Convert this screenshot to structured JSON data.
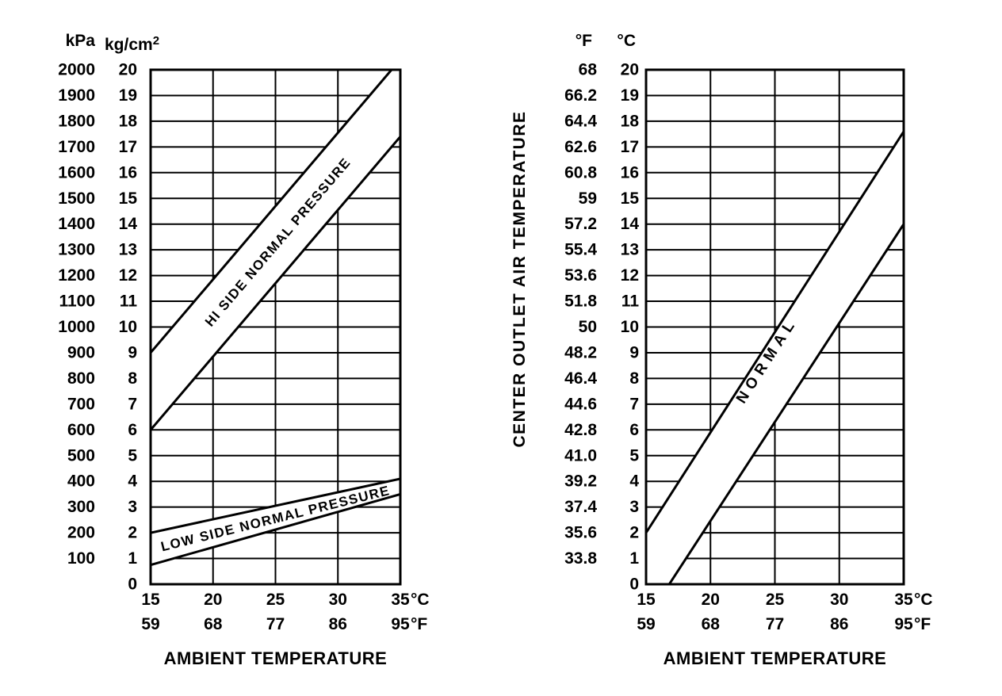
{
  "page": {
    "background": "#ffffff",
    "ink": "#000000",
    "band_fill": "#ffffff"
  },
  "chart_data": [
    {
      "id": "high-low-pressure-chart",
      "type": "area",
      "title": "",
      "xlabel": "AMBIENT TEMPERATURE",
      "x_axis": {
        "min": 15,
        "max": 35,
        "grid_step": 5,
        "ticks_c": [
          "15",
          "20",
          "25",
          "30",
          "35"
        ],
        "ticks_f": [
          "59",
          "68",
          "77",
          "86",
          "95"
        ],
        "unit_c": "°C",
        "unit_f": "°F"
      },
      "y_axis": {
        "min": 0,
        "max": 20,
        "grid_step": 1,
        "unit_left": "kPa",
        "unit_right": {
          "base": "kg/cm",
          "sup": "2"
        },
        "ticks_left": [
          "2000",
          "1900",
          "1800",
          "1700",
          "1600",
          "1500",
          "1400",
          "1300",
          "1200",
          "1100",
          "1000",
          "900",
          "800",
          "700",
          "600",
          "500",
          "400",
          "300",
          "200",
          "100",
          ""
        ],
        "ticks_right": [
          "20",
          "19",
          "18",
          "17",
          "16",
          "15",
          "14",
          "13",
          "12",
          "11",
          "10",
          "9",
          "8",
          "7",
          "6",
          "5",
          "4",
          "3",
          "2",
          "1",
          "0"
        ]
      },
      "grid": true,
      "bands": [
        {
          "name": "hi-side-normal-pressure-band",
          "label": "HI SIDE NORMAL PRESSURE",
          "lower": [
            [
              15,
              6
            ],
            [
              35,
              17.4
            ]
          ],
          "upper": [
            [
              15,
              9
            ],
            [
              35,
              20.4
            ]
          ],
          "label_pos": [
            25.2,
            13.3
          ]
        },
        {
          "name": "low-side-normal-pressure-band",
          "label": "LOW SIDE NORMAL PRESSURE",
          "lower": [
            [
              15,
              0.75
            ],
            [
              35,
              3.5
            ]
          ],
          "upper": [
            [
              15,
              2
            ],
            [
              35,
              4.1
            ]
          ],
          "label_pos": [
            25,
            2.55
          ]
        }
      ]
    },
    {
      "id": "center-outlet-air-temperature-chart",
      "type": "area",
      "title": "",
      "xlabel": "AMBIENT TEMPERATURE",
      "ylabel": "CENTER OUTLET AIR TEMPERATURE",
      "x_axis": {
        "min": 15,
        "max": 35,
        "grid_step": 5,
        "ticks_c": [
          "15",
          "20",
          "25",
          "30",
          "35"
        ],
        "ticks_f": [
          "59",
          "68",
          "77",
          "86",
          "95"
        ],
        "unit_c": "°C",
        "unit_f": "°F"
      },
      "y_axis": {
        "min": 0,
        "max": 20,
        "grid_step": 1,
        "unit_left": "°F",
        "unit_right": "°C",
        "ticks_left": [
          "68",
          "66.2",
          "64.4",
          "62.6",
          "60.8",
          "59",
          "57.2",
          "55.4",
          "53.6",
          "51.8",
          "50",
          "48.2",
          "46.4",
          "44.6",
          "42.8",
          "41.0",
          "39.2",
          "37.4",
          "35.6",
          "33.8",
          ""
        ],
        "ticks_right": [
          "20",
          "19",
          "18",
          "17",
          "16",
          "15",
          "14",
          "13",
          "12",
          "11",
          "10",
          "9",
          "8",
          "7",
          "6",
          "5",
          "4",
          "3",
          "2",
          "1",
          "0"
        ]
      },
      "grid": true,
      "bands": [
        {
          "name": "normal-band",
          "label": "NORMAL",
          "lower": [
            [
              16.8,
              0
            ],
            [
              35,
              14
            ]
          ],
          "upper": [
            [
              15,
              2
            ],
            [
              35,
              17.6
            ]
          ],
          "label_pos": [
            24.4,
            8.7
          ]
        }
      ]
    }
  ]
}
